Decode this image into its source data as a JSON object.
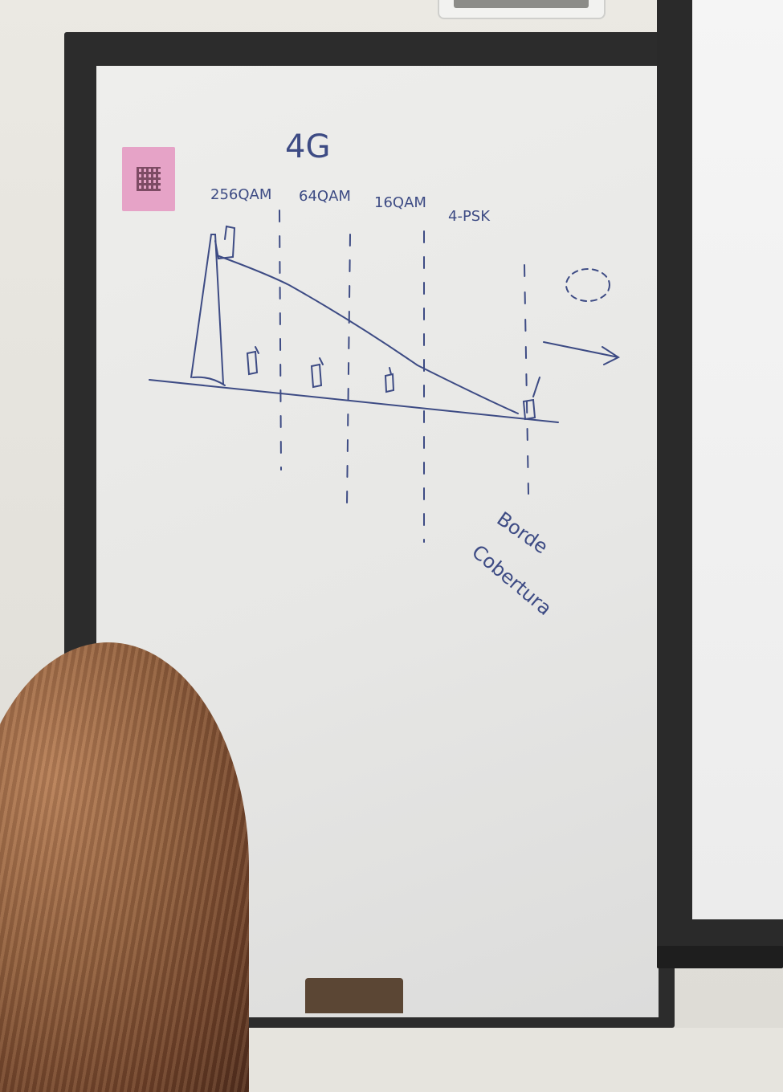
{
  "board": {
    "title": "4G",
    "modulations": [
      "256QAM",
      "64QAM",
      "16QAM",
      "4-PSK"
    ],
    "edge_label_line1": "Borde",
    "edge_label_line2": "Cobertura"
  },
  "colors": {
    "marker": "#3d4b84",
    "frame": "#2c2c2c",
    "board": "#ececea",
    "hair": "#8d5c3b",
    "sticker": "#e6a3c7"
  },
  "icons": [
    "cell-tower-icon",
    "phone-icon",
    "arrow-right-icon",
    "dashed-circle-icon",
    "qr-code-icon"
  ]
}
